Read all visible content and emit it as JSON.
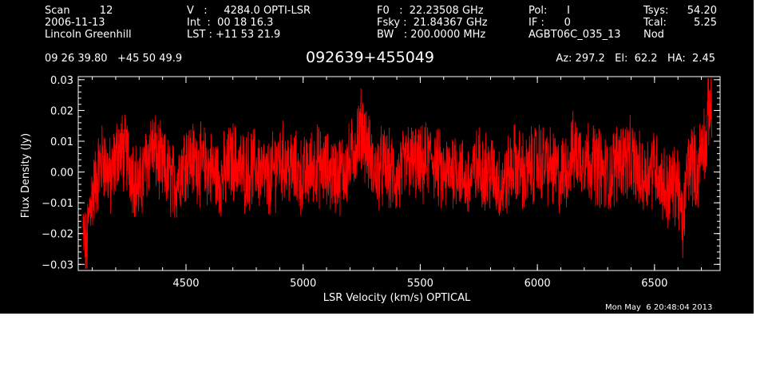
{
  "header": {
    "col1": [
      "Scan         12",
      "2006-11-13",
      "Lincoln Greenhill"
    ],
    "col2": [
      "V   :     4284.0 OPTI-LSR",
      "Int  :  00 18 16.3",
      "LST : +11 53 21.9"
    ],
    "col3": [
      "F0   :  22.23508 GHz",
      "Fsky :  21.84367 GHz",
      "BW   : 200.0000 MHz"
    ],
    "col4": [
      "Pol:      I",
      "IF :      0",
      "AGBT06C_035_13"
    ],
    "col5_labels": [
      "Tsys:",
      "Tcal:",
      "Nod"
    ],
    "col5_values": [
      "54.20",
      "5.25",
      ""
    ],
    "coords": "09 26 39.80   +45 50 49.9",
    "source": "092639+455049",
    "az_el_ha": "Az: 297.2   El:  62.2   HA:  2.45",
    "timestamp": "Mon May  6 20:48:04 2013"
  },
  "colors": {
    "background": "#000000",
    "trace": "#ff0000",
    "text": "#ffffff"
  },
  "chart_data": {
    "type": "line",
    "xlabel": "LSR Velocity (km/s) OPTICAL",
    "ylabel": "Flux Density (Jy)",
    "xlim": [
      4040,
      6780
    ],
    "ylim": [
      -0.032,
      0.031
    ],
    "xticks": [
      4500,
      5000,
      5500,
      6000,
      6500
    ],
    "yticks": [
      -0.03,
      -0.02,
      -0.01,
      0.0,
      0.01,
      0.02,
      0.03
    ],
    "ytick_labels": [
      "−0.03",
      "−0.02",
      "−0.01",
      "0.00",
      "0.01",
      "0.02",
      "0.03"
    ],
    "series": [
      {
        "x": [
          4060,
          4075,
          4090,
          4110,
          4130,
          4150,
          4180,
          4210,
          4250,
          4300,
          4350,
          4400,
          4450,
          4500,
          4550,
          4600,
          4650,
          4700,
          4750,
          4800,
          4850,
          4900,
          4950,
          5000,
          5050,
          5100,
          5150,
          5200,
          5250,
          5300,
          5350,
          5400,
          5450,
          5500,
          5550,
          5600,
          5650,
          5700,
          5750,
          5800,
          5850,
          5900,
          5950,
          6000,
          6050,
          6100,
          6150,
          6200,
          6250,
          6300,
          6350,
          6400,
          6450,
          6500,
          6550,
          6600,
          6620,
          6640,
          6660,
          6680,
          6700,
          6710,
          6720,
          6730,
          6740,
          6745
        ],
        "y": [
          -0.02,
          -0.026,
          -0.01,
          -0.005,
          0.002,
          0.004,
          -0.003,
          0.008,
          0.005,
          -0.006,
          0.009,
          0.001,
          -0.004,
          0.005,
          0.003,
          0.001,
          -0.002,
          0.004,
          0.0,
          0.002,
          -0.003,
          0.004,
          0.001,
          -0.002,
          0.003,
          0.0,
          -0.001,
          0.003,
          0.015,
          0.0,
          0.002,
          -0.003,
          0.004,
          0.001,
          0.005,
          -0.002,
          0.003,
          -0.004,
          0.002,
          0.0,
          -0.005,
          0.003,
          -0.001,
          0.004,
          0.002,
          -0.002,
          0.006,
          0.005,
          0.003,
          -0.002,
          0.005,
          0.004,
          -0.002,
          0.003,
          -0.006,
          -0.003,
          -0.02,
          0.002,
          0.004,
          -0.002,
          0.008,
          0.012,
          0.006,
          0.02,
          0.024,
          0.015
        ]
      }
    ]
  }
}
